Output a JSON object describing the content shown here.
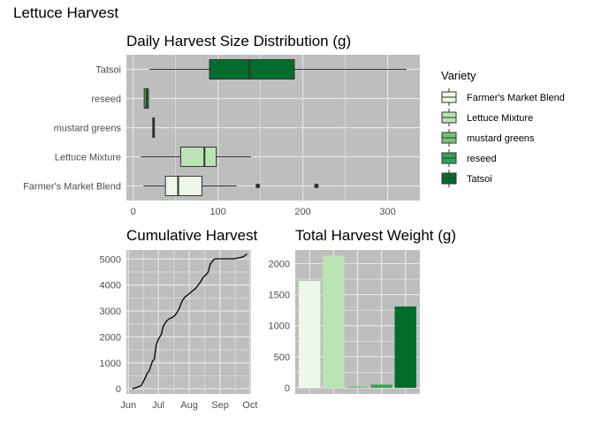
{
  "page_title": "Lettuce Harvest",
  "colors": {
    "panel_bg": "#bebebe",
    "grid": "#e6e6e6",
    "varieties": {
      "Farmer's Market Blend": "#edf8e9",
      "Lettuce Mixture": "#bae4b3",
      "mustard greens": "#74c476",
      "reseed": "#31a354",
      "Tatsoi": "#006d2c"
    }
  },
  "legend": {
    "title": "Variety",
    "items": [
      "Farmer's Market Blend",
      "Lettuce Mixture",
      "mustard greens",
      "reseed",
      "Tatsoi"
    ]
  },
  "chart_data": [
    {
      "type": "box",
      "title": "Daily Harvest Size Distribution (g)",
      "xlim": [
        -8,
        338
      ],
      "xticks": [
        0,
        100,
        200,
        300
      ],
      "categories": [
        "Farmer's Market Blend",
        "Lettuce Mixture",
        "mustard greens",
        "reseed",
        "Tatsoi"
      ],
      "boxes": [
        {
          "variety": "Farmer's Market Blend",
          "min": 12,
          "q1": 38,
          "median": 53,
          "q3": 81,
          "max": 122,
          "outliers": [
            147,
            216
          ]
        },
        {
          "variety": "Lettuce Mixture",
          "min": 9,
          "q1": 56,
          "median": 84,
          "q3": 98,
          "max": 139,
          "outliers": []
        },
        {
          "variety": "mustard greens",
          "min": 23,
          "q1": 23,
          "median": 24,
          "q3": 25,
          "max": 25,
          "outliers": []
        },
        {
          "variety": "reseed",
          "min": 13,
          "q1": 13,
          "median": 16,
          "q3": 18,
          "max": 19,
          "outliers": []
        },
        {
          "variety": "Tatsoi",
          "min": 19,
          "q1": 90,
          "median": 137,
          "q3": 190,
          "max": 322,
          "outliers": []
        }
      ]
    },
    {
      "type": "line",
      "title": "Cumulative Harvest",
      "xlabel": "",
      "ylabel": "",
      "xticks": [
        "Jun",
        "Jul",
        "Aug",
        "Sep",
        "Oct"
      ],
      "xlim": [
        "2022-05-30",
        "2022-10-02"
      ],
      "ylim": [
        -200,
        5350
      ],
      "yticks": [
        0,
        1000,
        2000,
        3000,
        4000,
        5000
      ],
      "x": [
        "2022-06-05",
        "2022-06-10",
        "2022-06-14",
        "2022-06-17",
        "2022-06-20",
        "2022-06-22",
        "2022-06-25",
        "2022-06-27",
        "2022-06-29",
        "2022-07-01",
        "2022-07-04",
        "2022-07-06",
        "2022-07-09",
        "2022-07-12",
        "2022-07-15",
        "2022-07-17",
        "2022-07-20",
        "2022-07-22",
        "2022-07-25",
        "2022-07-28",
        "2022-07-30",
        "2022-08-02",
        "2022-08-05",
        "2022-08-07",
        "2022-08-10",
        "2022-08-12",
        "2022-08-15",
        "2022-08-18",
        "2022-08-20",
        "2022-08-22",
        "2022-08-24",
        "2022-08-26",
        "2022-08-28",
        "2022-09-01",
        "2022-09-05",
        "2022-09-10",
        "2022-09-15",
        "2022-09-20",
        "2022-09-24",
        "2022-09-28"
      ],
      "y": [
        0,
        60,
        130,
        350,
        600,
        700,
        1050,
        1150,
        1700,
        1900,
        2100,
        2400,
        2600,
        2700,
        2750,
        2800,
        2950,
        3100,
        3400,
        3550,
        3600,
        3700,
        3800,
        3850,
        4000,
        4100,
        4300,
        4400,
        4500,
        4800,
        4900,
        5000,
        5010,
        5010,
        5010,
        5010,
        5010,
        5050,
        5080,
        5200
      ]
    },
    {
      "type": "bar",
      "title": "Total Harvest Weight (g)",
      "categories": [
        "Farmer's Market Blend",
        "Lettuce Mixture",
        "mustard greens",
        "reseed",
        "Tatsoi"
      ],
      "values": [
        1720,
        2130,
        20,
        50,
        1310
      ],
      "ylim": [
        -100,
        2220
      ],
      "yticks": [
        0,
        500,
        1000,
        1500,
        2000
      ]
    }
  ]
}
